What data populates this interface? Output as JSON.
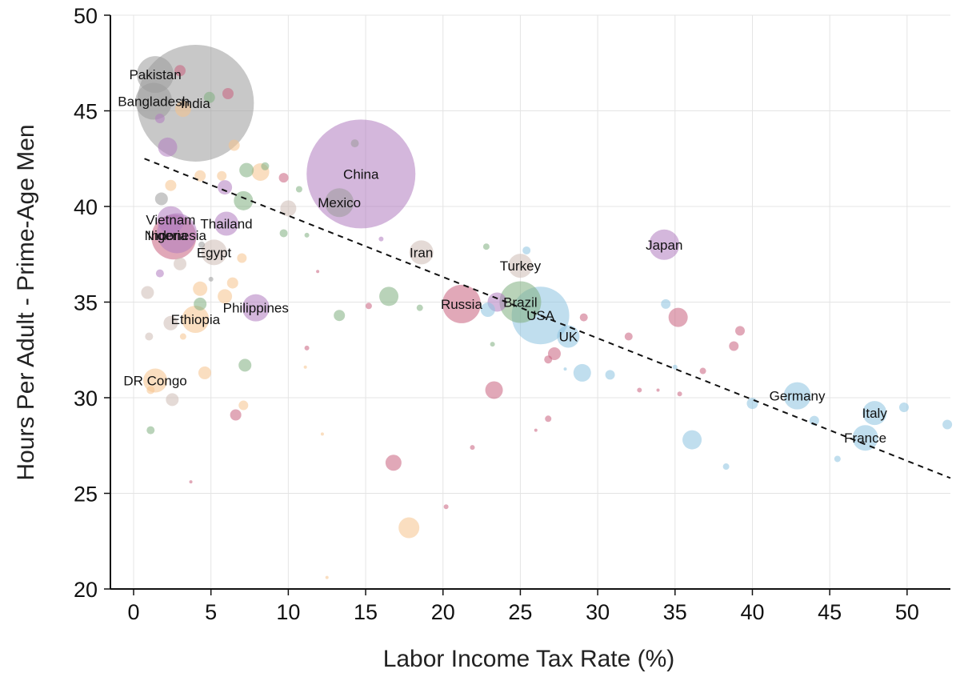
{
  "chart_data": {
    "type": "scatter",
    "xlabel": "Labor Income Tax Rate (%)",
    "ylabel": "Hours Per Adult - Prime-Age Men",
    "xlim": [
      -1.5,
      52.8
    ],
    "ylim": [
      20,
      50
    ],
    "xticks": [
      0,
      5,
      10,
      15,
      20,
      25,
      30,
      35,
      40,
      45,
      50
    ],
    "yticks": [
      20,
      25,
      30,
      35,
      40,
      45,
      50
    ],
    "grid": true,
    "legend": "none",
    "colors": {
      "gray": "#9a9a9a",
      "purple": "#b07cc0",
      "green": "#7faf7f",
      "orange": "#f5c38c",
      "pink": "#c8607e",
      "blue": "#8cc3e0",
      "taupe": "#cdbcb4",
      "trend": "#111111",
      "grid": "#e4e4e4"
    },
    "trendline": {
      "x": [
        0.7,
        52.8
      ],
      "y": [
        42.5,
        25.8
      ],
      "style": "dashed"
    },
    "points": [
      {
        "x": 4.0,
        "y": 45.4,
        "r": 73,
        "c": "gray",
        "label": "India"
      },
      {
        "x": 14.7,
        "y": 41.7,
        "r": 68,
        "c": "purple",
        "label": "China"
      },
      {
        "x": 26.3,
        "y": 34.3,
        "r": 36,
        "c": "blue",
        "label": "USA"
      },
      {
        "x": 1.4,
        "y": 46.9,
        "r": 23,
        "c": "gray",
        "label": "Pakistan"
      },
      {
        "x": 1.3,
        "y": 45.5,
        "r": 23,
        "c": "gray",
        "label": "Bangladesh"
      },
      {
        "x": 2.6,
        "y": 38.4,
        "r": 28,
        "c": "pink",
        "label": "Nigeria"
      },
      {
        "x": 2.8,
        "y": 38.6,
        "r": 25,
        "c": "purple",
        "label": "Indonesia"
      },
      {
        "x": 13.3,
        "y": 40.2,
        "r": 18,
        "c": "gray",
        "label": "Mexico"
      },
      {
        "x": 25.0,
        "y": 35.0,
        "r": 26,
        "c": "green",
        "label": "Brazil"
      },
      {
        "x": 21.2,
        "y": 34.9,
        "r": 24,
        "c": "pink",
        "label": "Russia"
      },
      {
        "x": 34.3,
        "y": 38.0,
        "r": 19,
        "c": "purple",
        "label": "Japan"
      },
      {
        "x": 42.9,
        "y": 30.1,
        "r": 17,
        "c": "blue",
        "label": "Germany"
      },
      {
        "x": 47.3,
        "y": 27.9,
        "r": 16,
        "c": "blue",
        "label": "France"
      },
      {
        "x": 47.9,
        "y": 29.2,
        "r": 15,
        "c": "blue",
        "label": "Italy"
      },
      {
        "x": 28.1,
        "y": 33.2,
        "r": 14,
        "c": "blue",
        "label": "UK"
      },
      {
        "x": 25.0,
        "y": 36.9,
        "r": 15,
        "c": "taupe",
        "label": "Turkey"
      },
      {
        "x": 18.6,
        "y": 37.6,
        "r": 15,
        "c": "taupe",
        "label": "Iran"
      },
      {
        "x": 5.2,
        "y": 37.6,
        "r": 16,
        "c": "taupe",
        "label": "Egypt"
      },
      {
        "x": 4.0,
        "y": 34.1,
        "r": 17,
        "c": "orange",
        "label": "Ethiopia"
      },
      {
        "x": 7.9,
        "y": 34.7,
        "r": 17,
        "c": "purple",
        "label": "Philippines"
      },
      {
        "x": 2.4,
        "y": 39.3,
        "r": 17,
        "c": "purple",
        "label": "Vietnam"
      },
      {
        "x": 6.0,
        "y": 39.1,
        "r": 15,
        "c": "purple",
        "label": "Thailand"
      },
      {
        "x": 1.4,
        "y": 30.9,
        "r": 15,
        "c": "orange",
        "label": "DR Congo"
      },
      {
        "x": 36.1,
        "y": 27.8,
        "r": 12,
        "c": "blue",
        "label": ""
      },
      {
        "x": 35.2,
        "y": 34.2,
        "r": 12,
        "c": "pink",
        "label": ""
      },
      {
        "x": 29.0,
        "y": 31.3,
        "r": 11,
        "c": "blue",
        "label": ""
      },
      {
        "x": 16.5,
        "y": 35.3,
        "r": 12,
        "c": "green",
        "label": ""
      },
      {
        "x": 17.8,
        "y": 23.2,
        "r": 13,
        "c": "orange",
        "label": ""
      },
      {
        "x": 16.8,
        "y": 26.6,
        "r": 10,
        "c": "pink",
        "label": ""
      },
      {
        "x": 23.3,
        "y": 30.4,
        "r": 11,
        "c": "pink",
        "label": ""
      },
      {
        "x": 27.2,
        "y": 32.3,
        "r": 8,
        "c": "pink",
        "label": ""
      },
      {
        "x": 22.9,
        "y": 34.6,
        "r": 9,
        "c": "blue",
        "label": ""
      },
      {
        "x": 23.5,
        "y": 35.0,
        "r": 12,
        "c": "purple",
        "label": ""
      },
      {
        "x": 40.0,
        "y": 29.7,
        "r": 7,
        "c": "blue",
        "label": ""
      },
      {
        "x": 39.2,
        "y": 33.5,
        "r": 6,
        "c": "pink",
        "label": ""
      },
      {
        "x": 38.8,
        "y": 32.7,
        "r": 6,
        "c": "pink",
        "label": ""
      },
      {
        "x": 44.0,
        "y": 28.8,
        "r": 6,
        "c": "blue",
        "label": ""
      },
      {
        "x": 49.8,
        "y": 29.5,
        "r": 6,
        "c": "blue",
        "label": ""
      },
      {
        "x": 52.6,
        "y": 28.6,
        "r": 6,
        "c": "blue",
        "label": ""
      },
      {
        "x": 45.5,
        "y": 26.8,
        "r": 4,
        "c": "blue",
        "label": ""
      },
      {
        "x": 38.3,
        "y": 26.4,
        "r": 4,
        "c": "blue",
        "label": ""
      },
      {
        "x": 34.4,
        "y": 34.9,
        "r": 6,
        "c": "blue",
        "label": ""
      },
      {
        "x": 30.8,
        "y": 31.2,
        "r": 6,
        "c": "blue",
        "label": ""
      },
      {
        "x": 32.0,
        "y": 33.2,
        "r": 5,
        "c": "pink",
        "label": ""
      },
      {
        "x": 36.8,
        "y": 31.4,
        "r": 4,
        "c": "pink",
        "label": ""
      },
      {
        "x": 35.0,
        "y": 31.6,
        "r": 3,
        "c": "blue",
        "label": ""
      },
      {
        "x": 29.1,
        "y": 34.2,
        "r": 5,
        "c": "pink",
        "label": ""
      },
      {
        "x": 26.8,
        "y": 32.0,
        "r": 5,
        "c": "pink",
        "label": ""
      },
      {
        "x": 25.4,
        "y": 37.7,
        "r": 5,
        "c": "blue",
        "label": ""
      },
      {
        "x": 22.8,
        "y": 37.9,
        "r": 4,
        "c": "green",
        "label": ""
      },
      {
        "x": 21.9,
        "y": 27.4,
        "r": 3,
        "c": "pink",
        "label": ""
      },
      {
        "x": 20.2,
        "y": 24.3,
        "r": 3,
        "c": "pink",
        "label": ""
      },
      {
        "x": 26.8,
        "y": 28.9,
        "r": 4,
        "c": "pink",
        "label": ""
      },
      {
        "x": 15.2,
        "y": 34.8,
        "r": 4,
        "c": "pink",
        "label": ""
      },
      {
        "x": 18.5,
        "y": 34.7,
        "r": 4,
        "c": "green",
        "label": ""
      },
      {
        "x": 13.3,
        "y": 34.3,
        "r": 7,
        "c": "green",
        "label": ""
      },
      {
        "x": 10.0,
        "y": 39.9,
        "r": 10,
        "c": "taupe",
        "label": ""
      },
      {
        "x": 9.7,
        "y": 41.5,
        "r": 6,
        "c": "pink",
        "label": ""
      },
      {
        "x": 9.7,
        "y": 38.6,
        "r": 5,
        "c": "green",
        "label": ""
      },
      {
        "x": 10.7,
        "y": 40.9,
        "r": 4,
        "c": "green",
        "label": ""
      },
      {
        "x": 8.5,
        "y": 42.1,
        "r": 5,
        "c": "green",
        "label": ""
      },
      {
        "x": 8.2,
        "y": 41.8,
        "r": 11,
        "c": "orange",
        "label": ""
      },
      {
        "x": 7.3,
        "y": 41.9,
        "r": 9,
        "c": "green",
        "label": ""
      },
      {
        "x": 7.1,
        "y": 40.3,
        "r": 12,
        "c": "green",
        "label": ""
      },
      {
        "x": 5.7,
        "y": 41.6,
        "r": 6,
        "c": "orange",
        "label": ""
      },
      {
        "x": 5.9,
        "y": 41.0,
        "r": 9,
        "c": "purple",
        "label": ""
      },
      {
        "x": 4.3,
        "y": 41.6,
        "r": 7,
        "c": "orange",
        "label": ""
      },
      {
        "x": 2.4,
        "y": 41.1,
        "r": 7,
        "c": "orange",
        "label": ""
      },
      {
        "x": 1.8,
        "y": 40.4,
        "r": 8,
        "c": "gray",
        "label": ""
      },
      {
        "x": 2.2,
        "y": 43.1,
        "r": 12,
        "c": "purple",
        "label": ""
      },
      {
        "x": 3.2,
        "y": 45.1,
        "r": 10,
        "c": "orange",
        "label": ""
      },
      {
        "x": 1.7,
        "y": 44.6,
        "r": 6,
        "c": "purple",
        "label": ""
      },
      {
        "x": 4.9,
        "y": 45.7,
        "r": 7,
        "c": "green",
        "label": ""
      },
      {
        "x": 6.1,
        "y": 45.9,
        "r": 7,
        "c": "pink",
        "label": ""
      },
      {
        "x": 3.0,
        "y": 47.1,
        "r": 7,
        "c": "pink",
        "label": ""
      },
      {
        "x": 6.5,
        "y": 43.2,
        "r": 7,
        "c": "orange",
        "label": ""
      },
      {
        "x": 14.3,
        "y": 43.3,
        "r": 5,
        "c": "gray",
        "label": ""
      },
      {
        "x": 16.0,
        "y": 38.3,
        "r": 3,
        "c": "purple",
        "label": ""
      },
      {
        "x": 11.2,
        "y": 38.5,
        "r": 3,
        "c": "green",
        "label": ""
      },
      {
        "x": 7.0,
        "y": 37.3,
        "r": 6,
        "c": "orange",
        "label": ""
      },
      {
        "x": 6.4,
        "y": 36.0,
        "r": 7,
        "c": "orange",
        "label": ""
      },
      {
        "x": 4.3,
        "y": 35.7,
        "r": 9,
        "c": "orange",
        "label": ""
      },
      {
        "x": 3.0,
        "y": 37.0,
        "r": 8,
        "c": "taupe",
        "label": ""
      },
      {
        "x": 1.7,
        "y": 36.5,
        "r": 5,
        "c": "purple",
        "label": ""
      },
      {
        "x": 5.9,
        "y": 35.3,
        "r": 9,
        "c": "orange",
        "label": ""
      },
      {
        "x": 4.3,
        "y": 34.9,
        "r": 8,
        "c": "green",
        "label": ""
      },
      {
        "x": 0.9,
        "y": 35.5,
        "r": 8,
        "c": "taupe",
        "label": ""
      },
      {
        "x": 1.0,
        "y": 33.2,
        "r": 5,
        "c": "taupe",
        "label": ""
      },
      {
        "x": 2.4,
        "y": 33.9,
        "r": 9,
        "c": "taupe",
        "label": ""
      },
      {
        "x": 3.2,
        "y": 33.2,
        "r": 4,
        "c": "orange",
        "label": ""
      },
      {
        "x": 7.2,
        "y": 31.7,
        "r": 8,
        "c": "green",
        "label": ""
      },
      {
        "x": 4.6,
        "y": 31.3,
        "r": 8,
        "c": "orange",
        "label": ""
      },
      {
        "x": 2.5,
        "y": 29.9,
        "r": 8,
        "c": "taupe",
        "label": ""
      },
      {
        "x": 1.1,
        "y": 30.4,
        "r": 5,
        "c": "orange",
        "label": ""
      },
      {
        "x": 6.6,
        "y": 29.1,
        "r": 7,
        "c": "pink",
        "label": ""
      },
      {
        "x": 7.1,
        "y": 29.6,
        "r": 6,
        "c": "orange",
        "label": ""
      },
      {
        "x": 1.1,
        "y": 28.3,
        "r": 5,
        "c": "green",
        "label": ""
      },
      {
        "x": 11.1,
        "y": 31.6,
        "r": 2,
        "c": "orange",
        "label": ""
      },
      {
        "x": 11.2,
        "y": 32.6,
        "r": 3,
        "c": "pink",
        "label": ""
      },
      {
        "x": 12.2,
        "y": 28.1,
        "r": 2,
        "c": "orange",
        "label": ""
      },
      {
        "x": 3.7,
        "y": 25.6,
        "r": 2,
        "c": "pink",
        "label": ""
      },
      {
        "x": 12.5,
        "y": 20.6,
        "r": 2,
        "c": "orange",
        "label": ""
      },
      {
        "x": 23.2,
        "y": 32.8,
        "r": 3,
        "c": "green",
        "label": ""
      },
      {
        "x": 33.9,
        "y": 30.4,
        "r": 2,
        "c": "pink",
        "label": ""
      },
      {
        "x": 32.7,
        "y": 30.4,
        "r": 3,
        "c": "pink",
        "label": ""
      },
      {
        "x": 35.3,
        "y": 30.2,
        "r": 3,
        "c": "pink",
        "label": ""
      },
      {
        "x": 26.0,
        "y": 28.3,
        "r": 2,
        "c": "pink",
        "label": ""
      },
      {
        "x": 27.9,
        "y": 31.5,
        "r": 2,
        "c": "blue",
        "label": ""
      },
      {
        "x": 11.9,
        "y": 36.6,
        "r": 2,
        "c": "pink",
        "label": ""
      },
      {
        "x": 4.4,
        "y": 38.0,
        "r": 4,
        "c": "gray",
        "label": ""
      },
      {
        "x": 5.0,
        "y": 36.2,
        "r": 3,
        "c": "gray",
        "label": ""
      }
    ],
    "labels": [
      {
        "text": "Pakistan",
        "x": 1.4,
        "y": 46.9
      },
      {
        "text": "Bangladesh",
        "x": 1.3,
        "y": 45.5
      },
      {
        "text": "India",
        "x": 4.0,
        "y": 45.4
      },
      {
        "text": "China",
        "x": 14.7,
        "y": 41.7
      },
      {
        "text": "Mexico",
        "x": 13.3,
        "y": 40.2
      },
      {
        "text": "Vietnam",
        "x": 2.4,
        "y": 39.3
      },
      {
        "text": "Thailand",
        "x": 6.0,
        "y": 39.1
      },
      {
        "text": "Nigeria",
        "x": 2.1,
        "y": 38.5
      },
      {
        "text": "Indonesia",
        "x": 2.8,
        "y": 38.5
      },
      {
        "text": "Egypt",
        "x": 5.2,
        "y": 37.6
      },
      {
        "text": "Iran",
        "x": 18.6,
        "y": 37.6
      },
      {
        "text": "Japan",
        "x": 34.3,
        "y": 38.0
      },
      {
        "text": "Turkey",
        "x": 25.0,
        "y": 36.9
      },
      {
        "text": "Russia",
        "x": 21.2,
        "y": 34.9
      },
      {
        "text": "Brazil",
        "x": 25.0,
        "y": 35.0
      },
      {
        "text": "Philippines",
        "x": 7.9,
        "y": 34.7
      },
      {
        "text": "Ethiopia",
        "x": 4.0,
        "y": 34.1
      },
      {
        "text": "USA",
        "x": 26.3,
        "y": 34.3
      },
      {
        "text": "UK",
        "x": 28.1,
        "y": 33.2
      },
      {
        "text": "DR Congo",
        "x": 1.4,
        "y": 30.9
      },
      {
        "text": "Germany",
        "x": 42.9,
        "y": 30.1
      },
      {
        "text": "Italy",
        "x": 47.9,
        "y": 29.2
      },
      {
        "text": "France",
        "x": 47.3,
        "y": 27.9
      }
    ]
  }
}
